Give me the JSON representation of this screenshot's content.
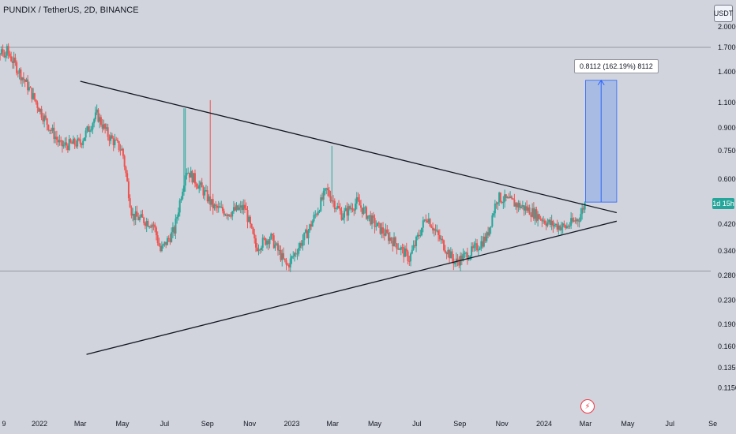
{
  "header": {
    "title": "PUNDIX / TetherUS, 2D, BINANCE",
    "currency": "USDT"
  },
  "price_tag": "1d 15h",
  "measure_label": "0.8112 (162.19%) 8112",
  "colors": {
    "background": "#d1d4dc",
    "up": "#26a69a",
    "down": "#ef5350",
    "trendline": "#131722",
    "measure_fill": "#5b8def",
    "measure_line": "#2962ff"
  },
  "icons": {
    "event": "lightning-icon"
  },
  "chart_data": {
    "type": "candlestick",
    "title": "PUNDIX / TetherUS, 2D, BINANCE",
    "y_scale": "log",
    "y_ticks": [
      "2.0000",
      "1.7000",
      "1.4000",
      "1.1000",
      "0.9000",
      "0.7500",
      "0.6000",
      "0.4200",
      "0.3400",
      "0.2800",
      "0.2300",
      "0.1900",
      "0.1600",
      "0.1350",
      "0.1150"
    ],
    "x_ticks": [
      "9",
      "2022",
      "Mar",
      "May",
      "Jul",
      "Sep",
      "Nov",
      "2023",
      "Mar",
      "May",
      "Jul",
      "Sep",
      "Nov",
      "2024",
      "Mar",
      "May",
      "Jul",
      "Se"
    ],
    "horizontal_levels": [
      1.7,
      0.29
    ],
    "price_path": [
      {
        "x": "2021-11-15",
        "y": 1.65
      },
      {
        "x": "2021-12-15",
        "y": 1.25
      },
      {
        "x": "2022-01-10",
        "y": 0.95
      },
      {
        "x": "2022-02-01",
        "y": 0.78
      },
      {
        "x": "2022-03-01",
        "y": 0.8
      },
      {
        "x": "2022-03-25",
        "y": 1.0
      },
      {
        "x": "2022-04-10",
        "y": 0.85
      },
      {
        "x": "2022-05-01",
        "y": 0.75
      },
      {
        "x": "2022-05-15",
        "y": 0.45
      },
      {
        "x": "2022-06-15",
        "y": 0.42
      },
      {
        "x": "2022-06-25",
        "y": 0.34
      },
      {
        "x": "2022-07-15",
        "y": 0.4
      },
      {
        "x": "2022-08-01",
        "y": 0.65
      },
      {
        "x": "2022-08-25",
        "y": 0.55
      },
      {
        "x": "2022-09-10",
        "y": 0.48
      },
      {
        "x": "2022-10-01",
        "y": 0.46
      },
      {
        "x": "2022-10-25",
        "y": 0.48
      },
      {
        "x": "2022-11-10",
        "y": 0.35
      },
      {
        "x": "2022-12-01",
        "y": 0.38
      },
      {
        "x": "2022-12-25",
        "y": 0.3
      },
      {
        "x": "2023-01-25",
        "y": 0.4
      },
      {
        "x": "2023-02-20",
        "y": 0.55
      },
      {
        "x": "2023-03-15",
        "y": 0.45
      },
      {
        "x": "2023-04-05",
        "y": 0.5
      },
      {
        "x": "2023-05-01",
        "y": 0.42
      },
      {
        "x": "2023-06-01",
        "y": 0.36
      },
      {
        "x": "2023-06-20",
        "y": 0.32
      },
      {
        "x": "2023-07-15",
        "y": 0.45
      },
      {
        "x": "2023-08-01",
        "y": 0.38
      },
      {
        "x": "2023-08-25",
        "y": 0.31
      },
      {
        "x": "2023-09-20",
        "y": 0.34
      },
      {
        "x": "2023-10-10",
        "y": 0.38
      },
      {
        "x": "2023-10-25",
        "y": 0.52
      },
      {
        "x": "2023-11-15",
        "y": 0.5
      },
      {
        "x": "2023-12-10",
        "y": 0.47
      },
      {
        "x": "2024-01-10",
        "y": 0.42
      },
      {
        "x": "2024-02-01",
        "y": 0.41
      },
      {
        "x": "2024-02-20",
        "y": 0.44
      },
      {
        "x": "2024-03-01",
        "y": 0.5
      }
    ],
    "spikes": [
      {
        "x": "2022-07-30",
        "y": 1.05
      },
      {
        "x": "2022-09-05",
        "y": 1.12
      },
      {
        "x": "2023-02-28",
        "y": 0.78
      }
    ],
    "trendlines": [
      {
        "from": {
          "x": "2022-03-01",
          "y": 1.3
        },
        "to": {
          "x": "2024-04-15",
          "y": 0.46
        }
      },
      {
        "from": {
          "x": "2022-03-10",
          "y": 0.15
        },
        "to": {
          "x": "2024-04-15",
          "y": 0.43
        }
      }
    ],
    "measure": {
      "from": {
        "x": "2024-03-01",
        "y": 0.5
      },
      "to": {
        "x": "2024-04-15",
        "y": 1.31
      },
      "change": 0.8112,
      "change_percent": 162.19
    }
  }
}
